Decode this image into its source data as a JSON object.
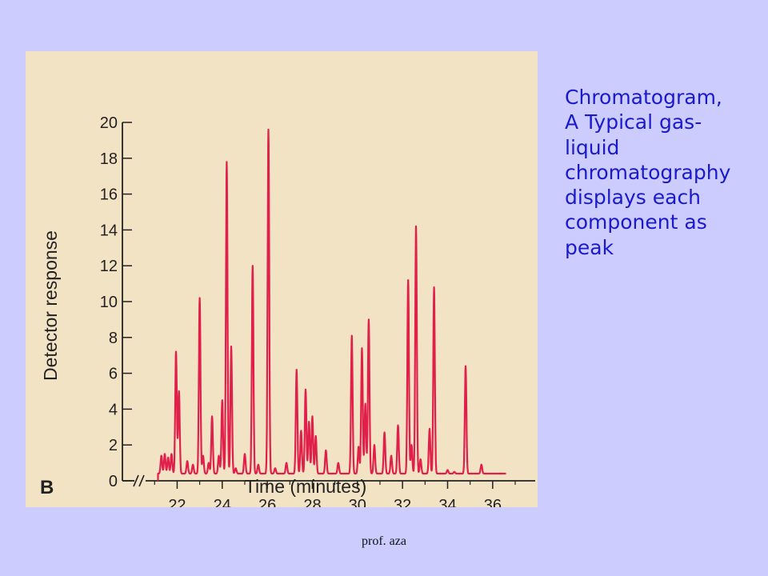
{
  "caption_lines": [
    "Chromatogram,",
    "A Typical gas-",
    "liquid",
    "chromatography",
    "displays each",
    "component as",
    "peak"
  ],
  "footer": "prof. aza",
  "colors": {
    "background": "#ccccff",
    "panel": "#f3e3c5",
    "trace": "#e0204a",
    "caption": "#1a1acc"
  },
  "chart_data": {
    "type": "line",
    "panel_label": "B",
    "title": "",
    "xlabel": "Time (minutes)",
    "ylabel": "Detector response",
    "xlim": [
      20.6,
      37.0
    ],
    "ylim": [
      0,
      20
    ],
    "xticks": [
      22,
      24,
      26,
      28,
      30,
      32,
      34,
      36
    ],
    "yticks": [
      0,
      2,
      4,
      6,
      8,
      10,
      12,
      14,
      16,
      18,
      20
    ],
    "axis_break": true,
    "grid": false,
    "series": [
      {
        "peaks": [
          {
            "x": 21.3,
            "y": 1.4
          },
          {
            "x": 21.45,
            "y": 1.5
          },
          {
            "x": 21.6,
            "y": 1.3
          },
          {
            "x": 21.75,
            "y": 1.5
          },
          {
            "x": 21.95,
            "y": 7.2
          },
          {
            "x": 22.08,
            "y": 5.0
          },
          {
            "x": 22.45,
            "y": 1.1
          },
          {
            "x": 22.7,
            "y": 0.9
          },
          {
            "x": 23.0,
            "y": 10.2
          },
          {
            "x": 23.15,
            "y": 1.4
          },
          {
            "x": 23.4,
            "y": 1.0
          },
          {
            "x": 23.55,
            "y": 3.6
          },
          {
            "x": 23.85,
            "y": 1.4
          },
          {
            "x": 24.0,
            "y": 4.5
          },
          {
            "x": 24.2,
            "y": 17.8
          },
          {
            "x": 24.4,
            "y": 7.5
          },
          {
            "x": 24.6,
            "y": 0.7
          },
          {
            "x": 25.0,
            "y": 1.5
          },
          {
            "x": 25.35,
            "y": 12.0
          },
          {
            "x": 25.6,
            "y": 0.9
          },
          {
            "x": 26.05,
            "y": 19.6
          },
          {
            "x": 26.35,
            "y": 0.7
          },
          {
            "x": 26.85,
            "y": 1.0
          },
          {
            "x": 27.3,
            "y": 6.2
          },
          {
            "x": 27.5,
            "y": 2.8
          },
          {
            "x": 27.7,
            "y": 5.1
          },
          {
            "x": 27.85,
            "y": 3.3
          },
          {
            "x": 28.0,
            "y": 3.6
          },
          {
            "x": 28.15,
            "y": 2.5
          },
          {
            "x": 28.6,
            "y": 1.7
          },
          {
            "x": 29.15,
            "y": 1.0
          },
          {
            "x": 29.75,
            "y": 8.1
          },
          {
            "x": 30.05,
            "y": 1.9
          },
          {
            "x": 30.2,
            "y": 7.4
          },
          {
            "x": 30.35,
            "y": 4.3
          },
          {
            "x": 30.5,
            "y": 9.0
          },
          {
            "x": 30.75,
            "y": 2.0
          },
          {
            "x": 31.2,
            "y": 2.7
          },
          {
            "x": 31.5,
            "y": 1.4
          },
          {
            "x": 31.8,
            "y": 3.1
          },
          {
            "x": 32.25,
            "y": 11.2
          },
          {
            "x": 32.4,
            "y": 2.0
          },
          {
            "x": 32.6,
            "y": 14.2
          },
          {
            "x": 32.8,
            "y": 1.2
          },
          {
            "x": 33.2,
            "y": 2.9
          },
          {
            "x": 33.4,
            "y": 10.8
          },
          {
            "x": 34.0,
            "y": 0.6
          },
          {
            "x": 34.3,
            "y": 0.5
          },
          {
            "x": 34.8,
            "y": 6.4
          },
          {
            "x": 35.5,
            "y": 0.9
          }
        ],
        "baseline": 0.4
      }
    ]
  }
}
